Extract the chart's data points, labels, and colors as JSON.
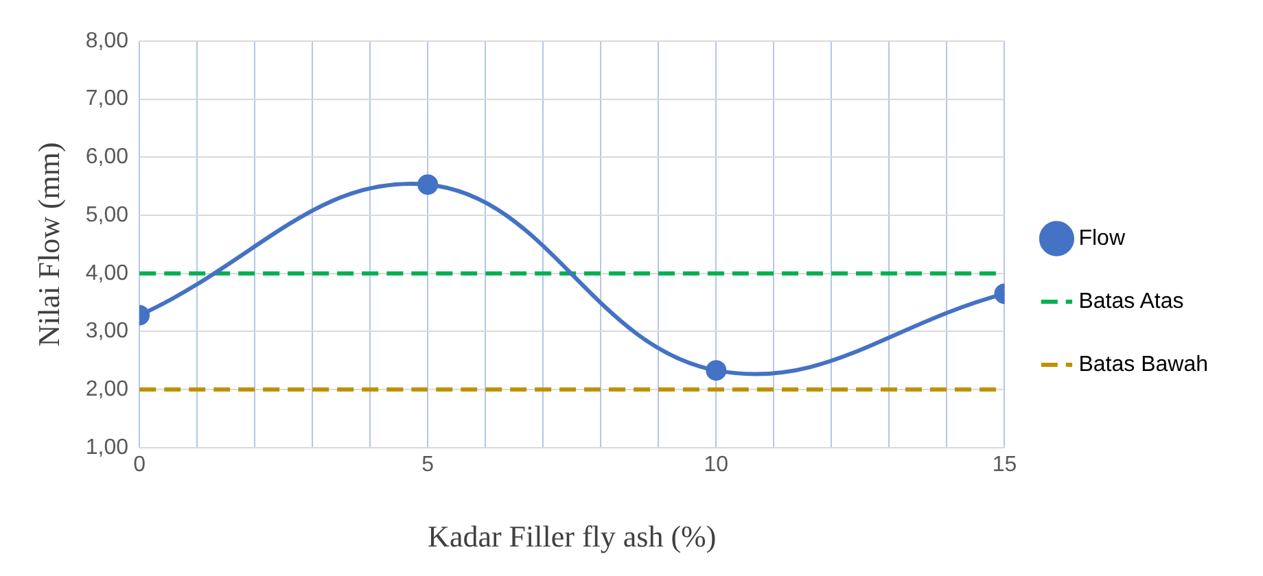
{
  "chart_data": {
    "type": "line",
    "xlabel": "Kadar Filler fly ash (%)",
    "ylabel": "Nilai Flow (mm)",
    "xlim": [
      0,
      15
    ],
    "xticks": [
      0,
      {
        "value": 1,
        "label": null
      },
      {
        "value": 2,
        "label": null
      },
      {
        "value": 3,
        "label": null
      },
      {
        "value": 4,
        "label": null
      },
      5,
      {
        "value": 6,
        "label": null
      },
      {
        "value": 7,
        "label": null
      },
      {
        "value": 8,
        "label": null
      },
      {
        "value": 9,
        "label": null
      },
      10,
      {
        "value": 11,
        "label": null
      },
      {
        "value": 12,
        "label": null
      },
      {
        "value": 13,
        "label": null
      },
      {
        "value": 14,
        "label": null
      },
      15
    ],
    "ylim": [
      1,
      8
    ],
    "yticks": [
      {
        "value": 1,
        "label": "1,00"
      },
      {
        "value": 2,
        "label": "2,00"
      },
      {
        "value": 3,
        "label": "3,00"
      },
      {
        "value": 4,
        "label": "4,00"
      },
      {
        "value": 5,
        "label": "5,00"
      },
      {
        "value": 6,
        "label": "6,00"
      },
      {
        "value": 7,
        "label": "7,00"
      },
      {
        "value": 8,
        "label": "8,00"
      }
    ],
    "grid": true,
    "legend": "right",
    "series": [
      {
        "name": "Flow",
        "color": "#4472c4",
        "x": [
          0,
          5,
          10,
          15
        ],
        "values": [
          3.28,
          5.53,
          2.33,
          3.65
        ],
        "marker": "circle",
        "line_style": "solid"
      },
      {
        "name": "Batas Atas",
        "color": "#00b050",
        "x": [
          0,
          15
        ],
        "values": [
          4,
          4
        ],
        "marker": "none",
        "line_style": "dashed"
      },
      {
        "name": "Batas Bawah",
        "color": "#bf9000",
        "x": [
          0,
          15
        ],
        "values": [
          2,
          2
        ],
        "marker": "none",
        "line_style": "dashed"
      }
    ]
  }
}
